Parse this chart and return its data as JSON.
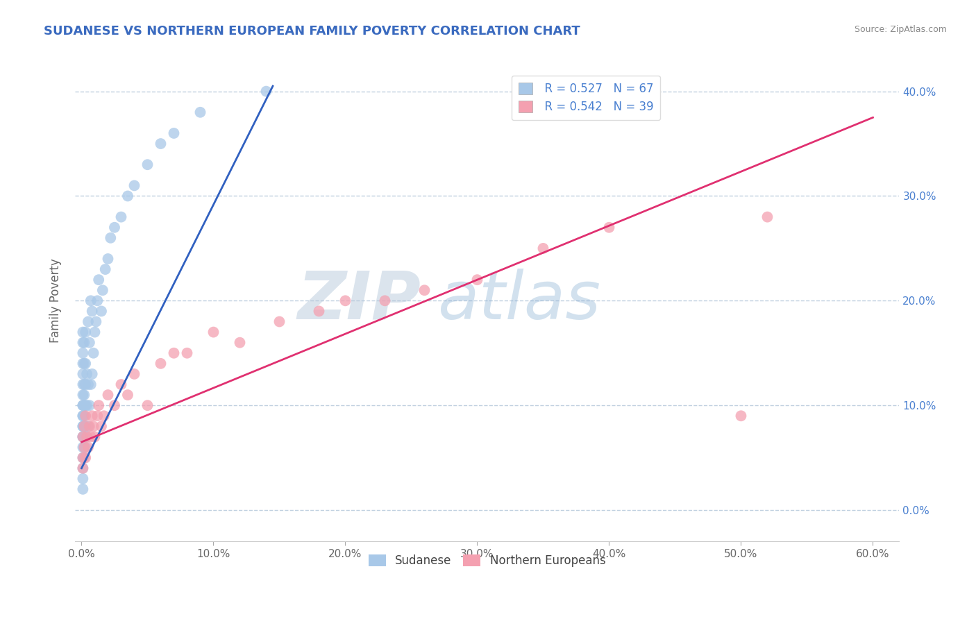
{
  "title": "SUDANESE VS NORTHERN EUROPEAN FAMILY POVERTY CORRELATION CHART",
  "source": "Source: ZipAtlas.com",
  "ylabel": "Family Poverty",
  "xlim": [
    -0.005,
    0.62
  ],
  "ylim": [
    -0.03,
    0.43
  ],
  "xticks": [
    0.0,
    0.1,
    0.2,
    0.3,
    0.4,
    0.5,
    0.6
  ],
  "yticks": [
    0.0,
    0.1,
    0.2,
    0.3,
    0.4
  ],
  "legend_r1": "R = 0.527",
  "legend_n1": "N = 67",
  "legend_r2": "R = 0.542",
  "legend_n2": "N = 39",
  "blue_color": "#a8c8e8",
  "pink_color": "#f4a0b0",
  "blue_line_color": "#3060c0",
  "pink_line_color": "#e03070",
  "title_color": "#3a6abf",
  "axis_label_color": "#666666",
  "tick_label_color": "#666666",
  "right_tick_color": "#4a80d0",
  "grid_color": "#c0d0e0",
  "watermark_color": "#c8d8e8",
  "source_color": "#888888",
  "blue_line_x0": 0.0,
  "blue_line_y0": 0.04,
  "blue_line_x1": 0.145,
  "blue_line_y1": 0.405,
  "pink_line_x0": 0.0,
  "pink_line_y0": 0.065,
  "pink_line_x1": 0.6,
  "pink_line_y1": 0.375,
  "sudanese_x": [
    0.001,
    0.001,
    0.001,
    0.001,
    0.001,
    0.001,
    0.001,
    0.001,
    0.001,
    0.001,
    0.001,
    0.001,
    0.001,
    0.001,
    0.001,
    0.001,
    0.001,
    0.001,
    0.001,
    0.001,
    0.002,
    0.002,
    0.002,
    0.002,
    0.002,
    0.002,
    0.002,
    0.002,
    0.002,
    0.002,
    0.003,
    0.003,
    0.003,
    0.003,
    0.003,
    0.003,
    0.004,
    0.004,
    0.004,
    0.005,
    0.005,
    0.005,
    0.006,
    0.006,
    0.007,
    0.007,
    0.008,
    0.008,
    0.009,
    0.01,
    0.011,
    0.012,
    0.013,
    0.015,
    0.016,
    0.018,
    0.02,
    0.022,
    0.025,
    0.03,
    0.035,
    0.04,
    0.05,
    0.06,
    0.07,
    0.09,
    0.14
  ],
  "sudanese_y": [
    0.05,
    0.06,
    0.07,
    0.07,
    0.08,
    0.08,
    0.09,
    0.09,
    0.1,
    0.1,
    0.11,
    0.12,
    0.13,
    0.14,
    0.15,
    0.16,
    0.17,
    0.04,
    0.03,
    0.02,
    0.05,
    0.06,
    0.07,
    0.08,
    0.09,
    0.1,
    0.11,
    0.12,
    0.14,
    0.16,
    0.06,
    0.08,
    0.1,
    0.12,
    0.14,
    0.17,
    0.07,
    0.1,
    0.13,
    0.08,
    0.12,
    0.18,
    0.1,
    0.16,
    0.12,
    0.2,
    0.13,
    0.19,
    0.15,
    0.17,
    0.18,
    0.2,
    0.22,
    0.19,
    0.21,
    0.23,
    0.24,
    0.26,
    0.27,
    0.28,
    0.3,
    0.31,
    0.33,
    0.35,
    0.36,
    0.38,
    0.4
  ],
  "northern_x": [
    0.001,
    0.001,
    0.001,
    0.002,
    0.002,
    0.003,
    0.003,
    0.004,
    0.005,
    0.006,
    0.007,
    0.008,
    0.009,
    0.01,
    0.012,
    0.013,
    0.015,
    0.017,
    0.02,
    0.025,
    0.03,
    0.035,
    0.04,
    0.05,
    0.06,
    0.07,
    0.08,
    0.1,
    0.12,
    0.15,
    0.18,
    0.2,
    0.23,
    0.26,
    0.3,
    0.35,
    0.4,
    0.5,
    0.52
  ],
  "northern_y": [
    0.04,
    0.05,
    0.07,
    0.06,
    0.08,
    0.05,
    0.09,
    0.07,
    0.06,
    0.08,
    0.07,
    0.09,
    0.08,
    0.07,
    0.09,
    0.1,
    0.08,
    0.09,
    0.11,
    0.1,
    0.12,
    0.11,
    0.13,
    0.1,
    0.14,
    0.15,
    0.15,
    0.17,
    0.16,
    0.18,
    0.19,
    0.2,
    0.2,
    0.21,
    0.22,
    0.25,
    0.27,
    0.09,
    0.28
  ]
}
